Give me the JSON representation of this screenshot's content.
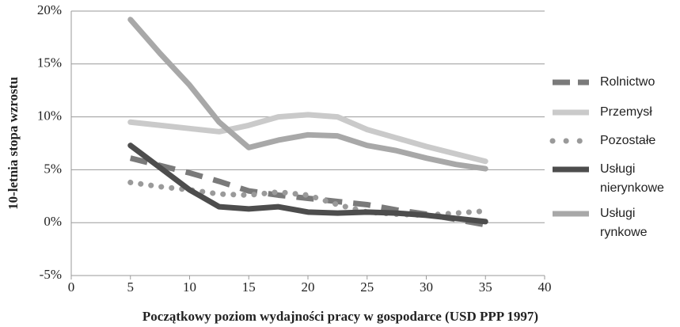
{
  "chart_data": {
    "type": "line",
    "x_label": "Początkowy poziom wydajności pracy w gospodarce (USD PPP 1997)",
    "y_label": "10-letnia stopa wzrostu",
    "x": [
      5,
      7.5,
      10,
      12.5,
      15,
      17.5,
      20,
      22.5,
      25,
      27.5,
      30,
      32.5,
      35
    ],
    "series": [
      {
        "name": "Rolnictwo",
        "color": "#7a7a7a",
        "style": "dashed",
        "values": [
          6.1,
          5.4,
          4.7,
          3.9,
          3.0,
          2.6,
          2.3,
          2.0,
          1.7,
          1.2,
          0.8,
          0.3,
          -0.2
        ]
      },
      {
        "name": "Przemysł",
        "color": "#cacaca",
        "style": "solid",
        "values": [
          9.5,
          9.2,
          8.9,
          8.6,
          9.2,
          10.0,
          10.2,
          10.0,
          8.8,
          8.0,
          7.2,
          6.5,
          5.8
        ]
      },
      {
        "name": "Pozostałe",
        "color": "#9a9a9a",
        "style": "dotted",
        "values": [
          3.8,
          3.4,
          3.1,
          2.7,
          2.6,
          2.9,
          2.6,
          1.7,
          1.0,
          0.8,
          0.7,
          0.9,
          1.1
        ]
      },
      {
        "name": "Usługi\nnierynkowe",
        "color": "#4d4d4d",
        "style": "solid",
        "values": [
          7.3,
          5.2,
          3.1,
          1.5,
          1.3,
          1.5,
          1.0,
          0.9,
          1.0,
          0.9,
          0.7,
          0.4,
          0.1
        ]
      },
      {
        "name": "Usługi\nrynkowe",
        "color": "#a8a8a8",
        "style": "solid",
        "values": [
          19.2,
          16.0,
          13.0,
          9.5,
          7.1,
          7.8,
          8.3,
          8.2,
          7.3,
          6.8,
          6.1,
          5.5,
          5.1
        ]
      }
    ],
    "xlim": [
      0,
      40
    ],
    "xticks": [
      0,
      5,
      10,
      15,
      20,
      25,
      30,
      35,
      40
    ],
    "ylim": [
      -5,
      20
    ],
    "yticks": [
      {
        "value": -5,
        "label": "-5%"
      },
      {
        "value": 0,
        "label": "0%"
      },
      {
        "value": 5,
        "label": "5%"
      },
      {
        "value": 10,
        "label": "10%"
      },
      {
        "value": 15,
        "label": "15%"
      },
      {
        "value": 20,
        "label": "20%"
      }
    ],
    "grid": true,
    "legend": "right"
  }
}
